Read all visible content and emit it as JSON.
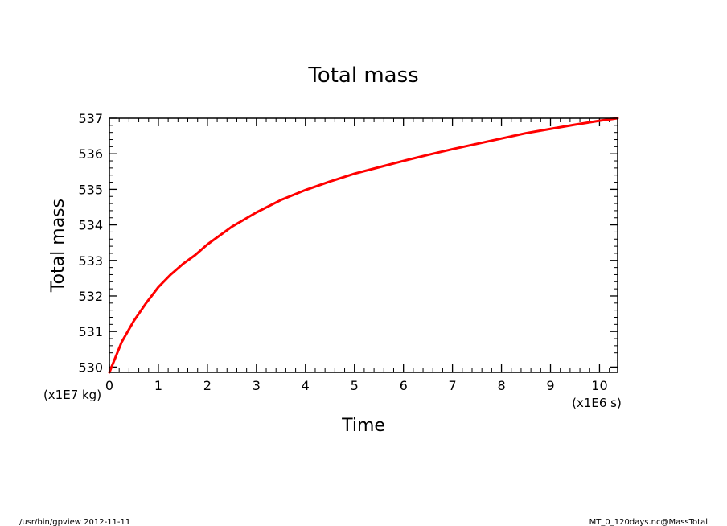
{
  "chart_data": {
    "type": "line",
    "title": "Total mass",
    "xlabel": "Time",
    "ylabel": "Total mass",
    "x_unit": "(x1E6 s)",
    "y_unit": "(x1E7 kg)",
    "xlim": [
      0,
      10.37
    ],
    "ylim": [
      529.85,
      537.0
    ],
    "x_ticks": [
      0,
      1,
      2,
      3,
      4,
      5,
      6,
      7,
      8,
      9,
      10
    ],
    "x_tick_labels": [
      "0",
      "1",
      "2",
      "3",
      "4",
      "5",
      "6",
      "7",
      "8",
      "9",
      "10"
    ],
    "y_ticks": [
      530,
      531,
      532,
      533,
      534,
      535,
      536,
      537
    ],
    "y_tick_labels": [
      "530",
      "531",
      "532",
      "533",
      "534",
      "535",
      "536",
      "537"
    ],
    "grid": false,
    "line_color": "#ff0000",
    "series": [
      {
        "x": [
          0,
          0.25,
          0.5,
          0.75,
          1.0,
          1.25,
          1.5,
          1.75,
          2.0,
          2.5,
          3.0,
          3.5,
          4.0,
          4.5,
          5.0,
          5.5,
          6.0,
          6.5,
          7.0,
          7.5,
          8.0,
          8.5,
          9.0,
          9.5,
          10.0,
          10.37
        ],
        "y": [
          529.85,
          530.7,
          531.3,
          531.8,
          532.25,
          532.6,
          532.9,
          533.15,
          533.45,
          533.95,
          534.35,
          534.7,
          534.98,
          535.22,
          535.44,
          535.62,
          535.8,
          535.97,
          536.13,
          536.28,
          536.43,
          536.58,
          536.7,
          536.82,
          536.93,
          537.0
        ]
      }
    ]
  },
  "footer": {
    "left": "/usr/bin/gpview  2012-11-11",
    "right": "MT_0_120days.nc@MassTotal"
  }
}
